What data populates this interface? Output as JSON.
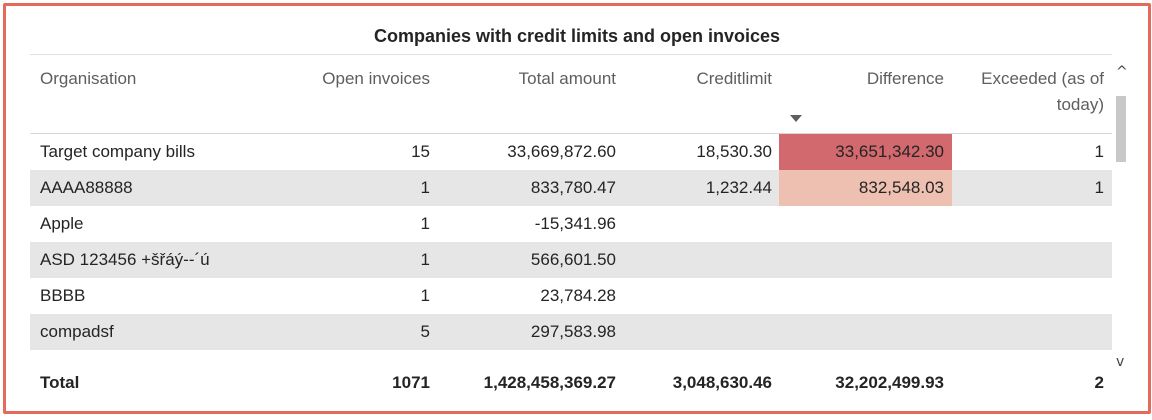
{
  "title": "Companies with credit limits and open invoices",
  "columns": {
    "organisation": "Organisation",
    "open_invoices": "Open invoices",
    "total_amount": "Total amount",
    "creditlimit": "Creditlimit",
    "difference": "Difference",
    "exceeded_line1": "Exceeded (as of",
    "exceeded_line2": "today)"
  },
  "rows": [
    {
      "organisation": "Target company bills",
      "open_invoices": "15",
      "total_amount": "33,669,872.60",
      "creditlimit": "18,530.30",
      "difference": "33,651,342.30",
      "exceeded": "1"
    },
    {
      "organisation": "AAAA88888",
      "open_invoices": "1",
      "total_amount": "833,780.47",
      "creditlimit": "1,232.44",
      "difference": "832,548.03",
      "exceeded": "1"
    },
    {
      "organisation": "Apple",
      "open_invoices": "1",
      "total_amount": "-15,341.96",
      "creditlimit": "",
      "difference": "",
      "exceeded": ""
    },
    {
      "organisation": "ASD 123456 +šřáý--´ú",
      "open_invoices": "1",
      "total_amount": "566,601.50",
      "creditlimit": "",
      "difference": "",
      "exceeded": ""
    },
    {
      "organisation": "BBBB",
      "open_invoices": "1",
      "total_amount": "23,784.28",
      "creditlimit": "",
      "difference": "",
      "exceeded": ""
    },
    {
      "organisation": "compadsf",
      "open_invoices": "5",
      "total_amount": "297,583.98",
      "creditlimit": "",
      "difference": "",
      "exceeded": ""
    }
  ],
  "total": {
    "label": "Total",
    "open_invoices": "1071",
    "total_amount": "1,428,458,369.27",
    "creditlimit": "3,048,630.46",
    "difference": "32,202,499.93",
    "exceeded": "2"
  },
  "icons": {
    "sort": "sort-descending-icon",
    "scroll_up": "scroll-up-icon",
    "scroll_down": "scroll-down-icon"
  },
  "colors": {
    "frame_border": "#e46b5a",
    "difference_high": "#d1696e",
    "difference_mid": "#eec0b2",
    "row_alt": "#e6e6e6"
  },
  "scroll": {
    "up_glyph": "^",
    "down_glyph": "v"
  }
}
